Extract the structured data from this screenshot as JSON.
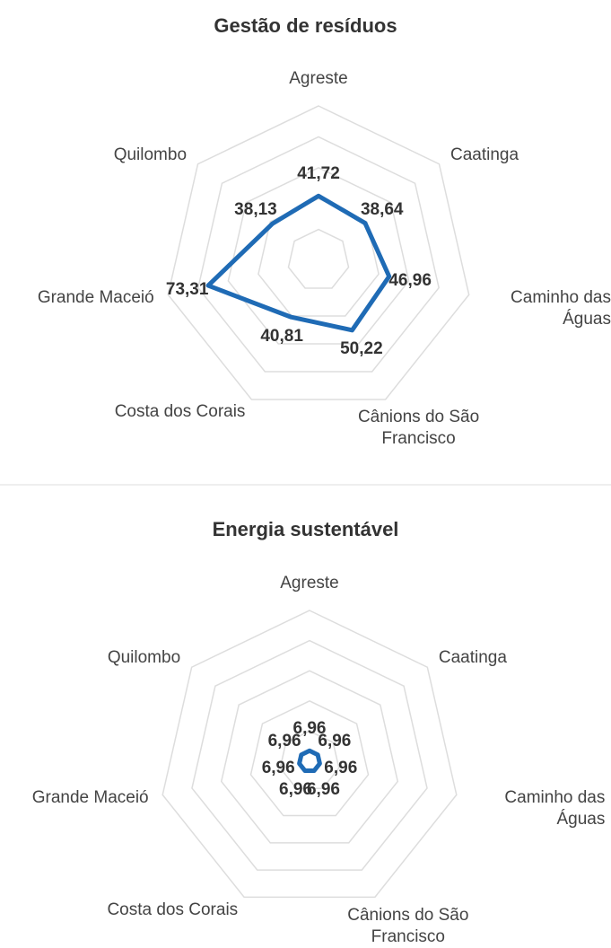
{
  "chart_data": [
    {
      "type": "radar",
      "title": "Gestão de resíduos",
      "categories": [
        "Agreste",
        "Caatinga",
        "Caminho das Águas",
        "Cânions do São Francisco",
        "Costa dos Corais",
        "Grande Maceió",
        "Quilombo"
      ],
      "values": [
        41.72,
        38.64,
        46.96,
        50.22,
        40.81,
        73.31,
        38.13
      ],
      "value_labels": [
        "41,72",
        "38,64",
        "46,96",
        "50,22",
        "40,81",
        "73,31",
        "38,13"
      ],
      "color": "#1f6bb5",
      "ylim": [
        0,
        100
      ],
      "yticks": [
        20,
        40,
        60,
        80,
        100
      ],
      "grid": true
    },
    {
      "type": "radar",
      "title": "Energia sustentável",
      "categories": [
        "Agreste",
        "Caatinga",
        "Caminho das Águas",
        "Cânions do São Francisco",
        "Costa dos Corais",
        "Grande Maceió",
        "Quilombo"
      ],
      "values": [
        6.96,
        6.96,
        6.96,
        6.96,
        6.96,
        6.96,
        6.96
      ],
      "value_labels": [
        "6,96",
        "6,96",
        "6,96",
        "6,96",
        "6,96",
        "6,96",
        "6,96"
      ],
      "color": "#1f6bb5",
      "ylim": [
        0,
        100
      ],
      "yticks": [
        20,
        40,
        60,
        80,
        100
      ],
      "grid": true
    }
  ]
}
